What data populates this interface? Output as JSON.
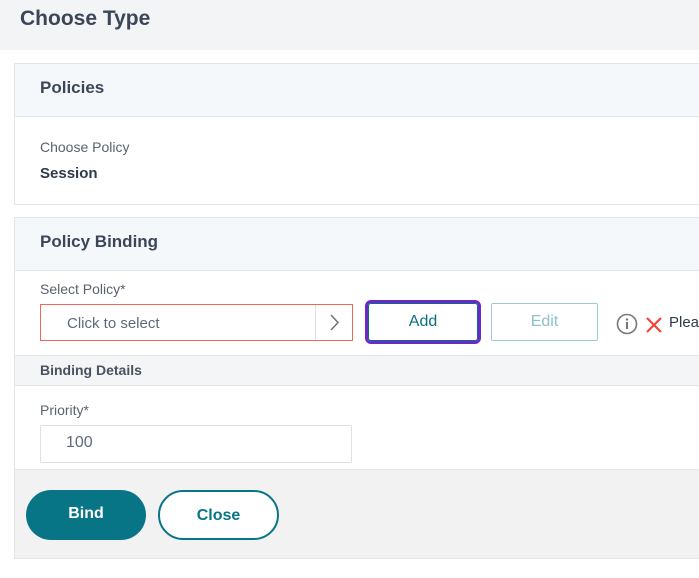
{
  "header": {
    "title": "Choose Type"
  },
  "policies": {
    "title": "Policies",
    "choose_label": "Choose Policy",
    "choose_value": "Session"
  },
  "binding": {
    "title": "Policy Binding",
    "select_label": "Select Policy*",
    "select_placeholder": "Click to select",
    "add_label": "Add",
    "edit_label": "Edit",
    "message": "Plea",
    "details_title": "Binding Details",
    "priority_label": "Priority*",
    "priority_value": "100",
    "bind_label": "Bind",
    "close_label": "Close"
  },
  "colors": {
    "accent": "#087587",
    "error": "#f0665a",
    "focus": "#6a2ac7"
  }
}
